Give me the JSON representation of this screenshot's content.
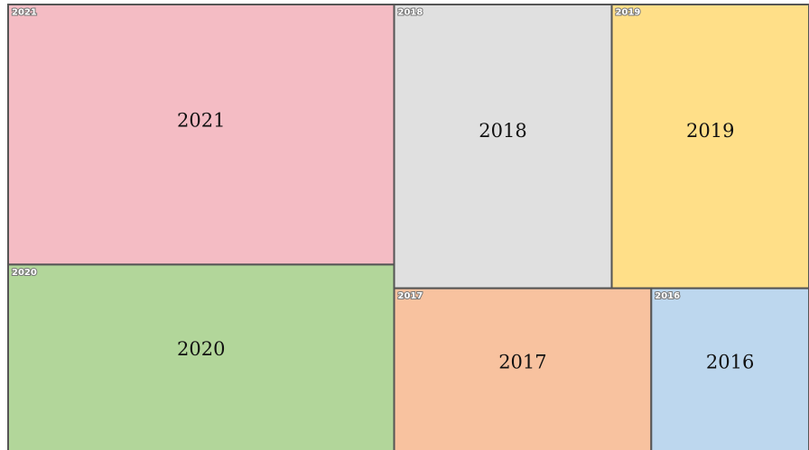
{
  "chart_data": {
    "type": "treemap",
    "categories": [
      "2021",
      "2020",
      "2018",
      "2019",
      "2017",
      "2016"
    ],
    "values": [
      27.8,
      20.4,
      17.1,
      15.5,
      11.9,
      7.3
    ],
    "colors": [
      "#f4bcc4",
      "#b2d69a",
      "#e0e0e0",
      "#ffdf88",
      "#f8c29f",
      "#bdd7ee"
    ]
  }
}
